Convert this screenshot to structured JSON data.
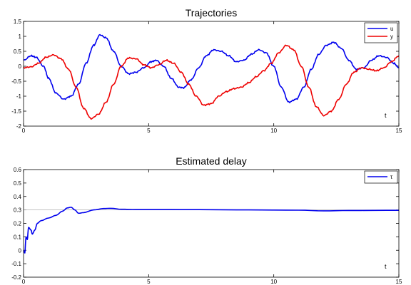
{
  "chart_data": [
    {
      "type": "line",
      "title": "Trajectories",
      "xlabel": "t",
      "ylabel": "",
      "xlim": [
        0,
        15
      ],
      "ylim": [
        -2,
        1.5
      ],
      "xticks": [
        "0",
        "5",
        "10",
        "15"
      ],
      "yticks": [
        "-2",
        "-1.5",
        "-1",
        "-0.5",
        "0",
        "0.5",
        "1",
        "1.5"
      ],
      "legend": "top-right",
      "grid": false,
      "series": [
        {
          "name": "u",
          "color": "#0000ee",
          "points": [
            [
              0,
              0.2
            ],
            [
              0.3,
              0.35
            ],
            [
              0.5,
              0.3
            ],
            [
              0.8,
              0.0
            ],
            [
              1.0,
              -0.4
            ],
            [
              1.3,
              -0.9
            ],
            [
              1.6,
              -1.1
            ],
            [
              1.9,
              -1.0
            ],
            [
              2.2,
              -0.6
            ],
            [
              2.5,
              0.1
            ],
            [
              2.8,
              0.7
            ],
            [
              3.05,
              1.05
            ],
            [
              3.3,
              0.95
            ],
            [
              3.6,
              0.5
            ],
            [
              3.9,
              0.0
            ],
            [
              4.2,
              -0.25
            ],
            [
              4.5,
              -0.2
            ],
            [
              4.8,
              -0.05
            ],
            [
              5.1,
              0.15
            ],
            [
              5.3,
              0.2
            ],
            [
              5.6,
              0.0
            ],
            [
              5.9,
              -0.4
            ],
            [
              6.2,
              -0.7
            ],
            [
              6.4,
              -0.72
            ],
            [
              6.7,
              -0.45
            ],
            [
              7.0,
              -0.05
            ],
            [
              7.3,
              0.35
            ],
            [
              7.6,
              0.55
            ],
            [
              7.9,
              0.5
            ],
            [
              8.2,
              0.35
            ],
            [
              8.5,
              0.15
            ],
            [
              8.8,
              0.2
            ],
            [
              9.1,
              0.4
            ],
            [
              9.4,
              0.55
            ],
            [
              9.7,
              0.45
            ],
            [
              10.0,
              0.0
            ],
            [
              10.3,
              -0.7
            ],
            [
              10.6,
              -1.2
            ],
            [
              10.9,
              -1.1
            ],
            [
              11.2,
              -0.7
            ],
            [
              11.5,
              -0.1
            ],
            [
              11.8,
              0.4
            ],
            [
              12.1,
              0.7
            ],
            [
              12.4,
              0.8
            ],
            [
              12.7,
              0.6
            ],
            [
              13.0,
              0.2
            ],
            [
              13.3,
              -0.1
            ],
            [
              13.6,
              -0.05
            ],
            [
              13.9,
              0.2
            ],
            [
              14.2,
              0.35
            ],
            [
              14.5,
              0.3
            ],
            [
              14.8,
              0.1
            ],
            [
              15,
              -0.05
            ]
          ]
        },
        {
          "name": "y",
          "color": "#ee0000",
          "points": [
            [
              0,
              -0.05
            ],
            [
              0.3,
              -0.02
            ],
            [
              0.6,
              0.1
            ],
            [
              0.9,
              0.3
            ],
            [
              1.2,
              0.38
            ],
            [
              1.5,
              0.25
            ],
            [
              1.8,
              -0.1
            ],
            [
              2.1,
              -0.7
            ],
            [
              2.4,
              -1.4
            ],
            [
              2.7,
              -1.75
            ],
            [
              3.0,
              -1.6
            ],
            [
              3.3,
              -1.2
            ],
            [
              3.6,
              -0.6
            ],
            [
              3.9,
              0.0
            ],
            [
              4.2,
              0.28
            ],
            [
              4.5,
              0.25
            ],
            [
              4.8,
              0.05
            ],
            [
              5.1,
              -0.05
            ],
            [
              5.4,
              0.05
            ],
            [
              5.7,
              0.2
            ],
            [
              6.0,
              0.1
            ],
            [
              6.3,
              -0.2
            ],
            [
              6.6,
              -0.6
            ],
            [
              6.9,
              -1.0
            ],
            [
              7.2,
              -1.3
            ],
            [
              7.5,
              -1.25
            ],
            [
              7.8,
              -1.0
            ],
            [
              8.1,
              -0.85
            ],
            [
              8.4,
              -0.75
            ],
            [
              8.7,
              -0.7
            ],
            [
              9.0,
              -0.55
            ],
            [
              9.3,
              -0.35
            ],
            [
              9.6,
              -0.15
            ],
            [
              9.9,
              0.1
            ],
            [
              10.2,
              0.45
            ],
            [
              10.5,
              0.7
            ],
            [
              10.8,
              0.55
            ],
            [
              11.1,
              0.0
            ],
            [
              11.4,
              -0.7
            ],
            [
              11.7,
              -1.35
            ],
            [
              12.0,
              -1.65
            ],
            [
              12.3,
              -1.5
            ],
            [
              12.6,
              -1.1
            ],
            [
              12.9,
              -0.6
            ],
            [
              13.2,
              -0.2
            ],
            [
              13.5,
              -0.05
            ],
            [
              13.8,
              -0.1
            ],
            [
              14.1,
              -0.15
            ],
            [
              14.4,
              -0.05
            ],
            [
              14.7,
              0.15
            ],
            [
              15,
              0.35
            ]
          ]
        }
      ]
    },
    {
      "type": "line",
      "title": "Estimated delay",
      "xlabel": "t",
      "ylabel": "",
      "xlim": [
        0,
        15
      ],
      "ylim": [
        -0.2,
        0.6
      ],
      "xticks": [
        "0",
        "5",
        "10",
        "15"
      ],
      "yticks": [
        "-0.2",
        "-0.1",
        "0",
        "0.1",
        "0.2",
        "0.3",
        "0.4",
        "0.5",
        "0.6"
      ],
      "legend": "top-right",
      "grid": false,
      "reference_line": 0.3,
      "series": [
        {
          "name": "τ",
          "color": "#0000ee",
          "points": [
            [
              0,
              0.0
            ],
            [
              0.05,
              -0.02
            ],
            [
              0.1,
              0.1
            ],
            [
              0.15,
              0.08
            ],
            [
              0.2,
              0.17
            ],
            [
              0.3,
              0.15
            ],
            [
              0.35,
              0.12
            ],
            [
              0.45,
              0.15
            ],
            [
              0.55,
              0.2
            ],
            [
              0.7,
              0.22
            ],
            [
              1.0,
              0.24
            ],
            [
              1.3,
              0.26
            ],
            [
              1.55,
              0.29
            ],
            [
              1.75,
              0.315
            ],
            [
              1.9,
              0.32
            ],
            [
              2.05,
              0.3
            ],
            [
              2.2,
              0.275
            ],
            [
              2.4,
              0.28
            ],
            [
              2.8,
              0.3
            ],
            [
              3.2,
              0.31
            ],
            [
              3.5,
              0.312
            ],
            [
              3.9,
              0.305
            ],
            [
              4.5,
              0.303
            ],
            [
              5.5,
              0.303
            ],
            [
              7.0,
              0.302
            ],
            [
              9.0,
              0.3
            ],
            [
              11.0,
              0.298
            ],
            [
              12.0,
              0.293
            ],
            [
              13.0,
              0.296
            ],
            [
              15,
              0.297
            ]
          ]
        }
      ]
    }
  ]
}
